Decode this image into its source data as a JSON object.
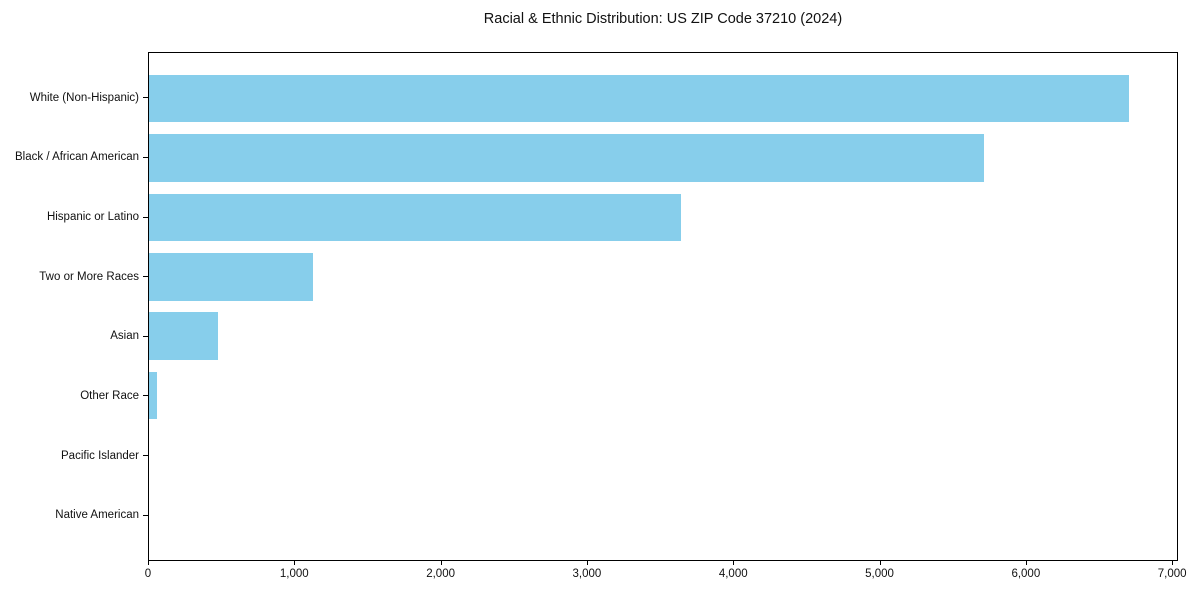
{
  "chart_data": {
    "type": "bar",
    "orientation": "horizontal",
    "title": "Racial & Ethnic Distribution: US ZIP Code 37210 (2024)",
    "xlabel": "",
    "ylabel": "",
    "categories": [
      "White (Non-Hispanic)",
      "Black / African American",
      "Hispanic or Latino",
      "Two or More Races",
      "Asian",
      "Other Race",
      "Pacific Islander",
      "Native American"
    ],
    "values": [
      6710,
      5715,
      3645,
      1120,
      475,
      55,
      0,
      0
    ],
    "xlim": [
      0,
      7040
    ],
    "x_ticks": [
      0,
      1000,
      2000,
      3000,
      4000,
      5000,
      6000,
      7000
    ],
    "x_tick_labels": [
      "0",
      "1,000",
      "2,000",
      "3,000",
      "4,000",
      "5,000",
      "6,000",
      "7,000"
    ],
    "bar_color": "#87CEEB",
    "spine_color": "#000000",
    "background_color": "#ffffff",
    "grid": false,
    "legend": null
  }
}
